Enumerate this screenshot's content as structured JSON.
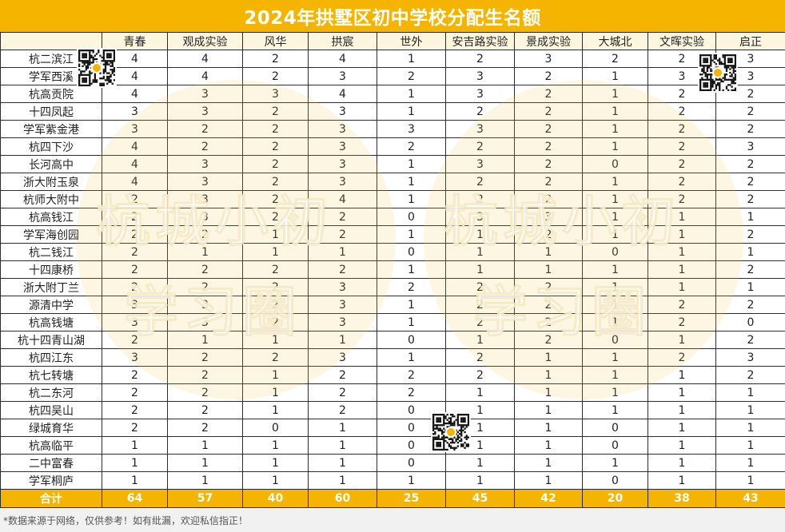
{
  "title": "2024年拱墅区初中学校分配生名额",
  "columns": [
    "青春",
    "观成实验",
    "风华",
    "拱宸",
    "世外",
    "安吉路实验",
    "景成实验",
    "大城北",
    "文晖实验",
    "启正"
  ],
  "rows": [
    {
      "school": "杭二滨江",
      "values": [
        "4",
        "4",
        "2",
        "4",
        "1",
        "2",
        "3",
        "2",
        "2",
        "3"
      ]
    },
    {
      "school": "学军西溪",
      "values": [
        "4",
        "4",
        "2",
        "3",
        "2",
        "3",
        "2",
        "1",
        "3",
        "3"
      ]
    },
    {
      "school": "杭高贡院",
      "values": [
        "4",
        "3",
        "3",
        "4",
        "1",
        "3",
        "2",
        "1",
        "2",
        "2"
      ]
    },
    {
      "school": "十四凤起",
      "values": [
        "3",
        "3",
        "2",
        "3",
        "1",
        "2",
        "2",
        "1",
        "2",
        "2"
      ]
    },
    {
      "school": "学军紫金港",
      "values": [
        "3",
        "2",
        "2",
        "3",
        "3",
        "3",
        "2",
        "1",
        "2",
        "2"
      ]
    },
    {
      "school": "杭四下沙",
      "values": [
        "4",
        "2",
        "2",
        "3",
        "2",
        "2",
        "2",
        "1",
        "2",
        "3"
      ]
    },
    {
      "school": "长河高中",
      "values": [
        "4",
        "3",
        "2",
        "3",
        "1",
        "3",
        "2",
        "0",
        "2",
        "2"
      ]
    },
    {
      "school": "浙大附玉泉",
      "values": [
        "4",
        "3",
        "2",
        "3",
        "1",
        "2",
        "2",
        "1",
        "2",
        "2"
      ]
    },
    {
      "school": "杭师大附中",
      "values": [
        "2",
        "3",
        "2",
        "4",
        "1",
        "2",
        "2",
        "1",
        "2",
        "2"
      ]
    },
    {
      "school": "杭高钱江",
      "values": [
        "2",
        "3",
        "2",
        "2",
        "0",
        "3",
        "3",
        "1",
        "1",
        "1"
      ]
    },
    {
      "school": "学军海创园",
      "values": [
        "2",
        "2",
        "1",
        "2",
        "1",
        "1",
        "2",
        "1",
        "1",
        "2"
      ]
    },
    {
      "school": "杭二钱江",
      "values": [
        "2",
        "1",
        "1",
        "1",
        "0",
        "1",
        "1",
        "0",
        "1",
        "1"
      ]
    },
    {
      "school": "十四康桥",
      "values": [
        "2",
        "2",
        "2",
        "2",
        "1",
        "1",
        "1",
        "1",
        "1",
        "2"
      ]
    },
    {
      "school": "浙大附丁兰",
      "values": [
        "2",
        "2",
        "2",
        "3",
        "2",
        "2",
        "2",
        "1",
        "1",
        "1"
      ]
    },
    {
      "school": "源清中学",
      "values": [
        "3",
        "3",
        "2",
        "3",
        "1",
        "2",
        "2",
        "1",
        "2",
        "2"
      ]
    },
    {
      "school": "杭高钱塘",
      "values": [
        "3",
        "3",
        "2",
        "3",
        "1",
        "2",
        "2",
        "1",
        "2",
        "0"
      ]
    },
    {
      "school": "杭十四青山湖",
      "values": [
        "2",
        "1",
        "1",
        "1",
        "0",
        "1",
        "2",
        "0",
        "1",
        "2"
      ]
    },
    {
      "school": "杭四江东",
      "values": [
        "3",
        "2",
        "2",
        "3",
        "1",
        "2",
        "1",
        "1",
        "2",
        "3"
      ]
    },
    {
      "school": "杭七转塘",
      "values": [
        "2",
        "2",
        "1",
        "2",
        "2",
        "2",
        "1",
        "1",
        "1",
        "2"
      ]
    },
    {
      "school": "杭二东河",
      "values": [
        "2",
        "2",
        "1",
        "2",
        "2",
        "1",
        "1",
        "1",
        "1",
        "1"
      ]
    },
    {
      "school": "杭四吴山",
      "values": [
        "2",
        "2",
        "1",
        "2",
        "0",
        "1",
        "1",
        "1",
        "1",
        "1"
      ]
    },
    {
      "school": "绿城育华",
      "values": [
        "2",
        "2",
        "0",
        "1",
        "0",
        "1",
        "1",
        "0",
        "1",
        "1"
      ]
    },
    {
      "school": "杭高临平",
      "values": [
        "1",
        "1",
        "1",
        "1",
        "0",
        "1",
        "1",
        "0",
        "1",
        "1"
      ]
    },
    {
      "school": "二中富春",
      "values": [
        "1",
        "1",
        "1",
        "1",
        "0",
        "1",
        "1",
        "1",
        "1",
        "1"
      ]
    },
    {
      "school": "学军桐庐",
      "values": [
        "1",
        "1",
        "1",
        "1",
        "1",
        "1",
        "1",
        "0",
        "1",
        "1"
      ]
    }
  ],
  "total": {
    "label": "合计",
    "values": [
      "64",
      "57",
      "40",
      "60",
      "25",
      "45",
      "42",
      "20",
      "38",
      "43"
    ]
  },
  "footer_note": "*数据来源于网络，仅供参考！如有纰漏，欢迎私信指正！",
  "watermark": {
    "line1": "杭城小初",
    "line2": "学习圈"
  },
  "colors": {
    "accent": "#f5b400",
    "header_bg": "#fdf6de",
    "border": "#2b2b2b"
  }
}
